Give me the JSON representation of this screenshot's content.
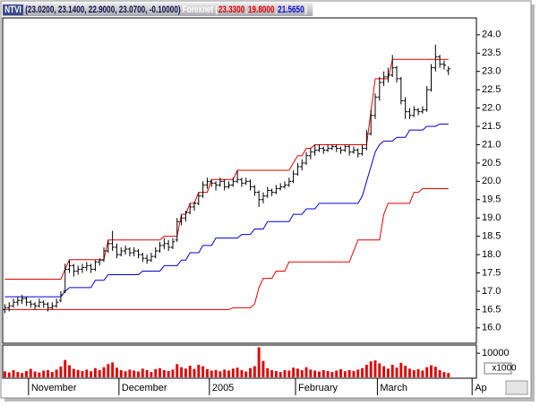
{
  "header": {
    "symbol": "NTVI",
    "quote": "(23.0200, 23.1400, 22.9000, 23.0700, -0.10000)",
    "indicator": "Forexnet",
    "indicator_parts": [
      {
        "text": "(",
        "color": "#ffffff"
      },
      {
        "text": "23.3300",
        "color": "#e00000"
      },
      {
        "text": ",",
        "color": "#ffffff"
      },
      {
        "text": "19.8000",
        "color": "#e00000"
      },
      {
        "text": ",",
        "color": "#ffffff"
      },
      {
        "text": "21.5650",
        "color": "#1010d0"
      },
      {
        "text": ")",
        "color": "#ffffff"
      }
    ]
  },
  "chart_data": {
    "type": "ohlc",
    "color": "#000000",
    "categories": [
      null,
      null,
      null,
      null,
      null,
      null,
      "November",
      null,
      null,
      null,
      null,
      null,
      null,
      null,
      null,
      null,
      null,
      null,
      null,
      null,
      null,
      null,
      null,
      null,
      null,
      null,
      null,
      "December",
      null,
      null,
      null,
      null,
      null,
      null,
      null,
      null,
      null,
      null,
      null,
      null,
      null,
      null,
      null,
      null,
      null,
      null,
      null,
      null,
      "2005",
      null,
      null,
      null,
      null,
      null,
      null,
      null,
      null,
      null,
      null,
      null,
      null,
      null,
      null,
      null,
      null,
      null,
      null,
      null,
      "February",
      null,
      null,
      null,
      null,
      null,
      null,
      null,
      null,
      null,
      null,
      null,
      null,
      null,
      null,
      null,
      null,
      null,
      null,
      "March",
      null,
      null,
      null,
      null,
      null,
      null,
      null,
      null,
      null,
      null,
      null,
      null,
      null,
      null,
      null,
      null,
      null,
      null,
      null,
      null,
      null,
      "Ap"
    ],
    "ylim": [
      15.58,
      24.46
    ],
    "yticks": [
      {
        "value": 16,
        "label": "16.0"
      },
      16.5,
      {
        "value": 17,
        "label": "17.0"
      },
      17.5,
      {
        "value": 18,
        "label": "18.0"
      },
      18.5,
      {
        "value": 19,
        "label": "19.0"
      },
      19.5,
      {
        "value": 20,
        "label": "20.0"
      },
      20.5,
      {
        "value": 21,
        "label": "21.0"
      },
      21.5,
      {
        "value": 22,
        "label": "22.0"
      },
      22.5,
      {
        "value": 23,
        "label": "23.0"
      },
      23.5,
      {
        "value": 24,
        "label": "24.0"
      }
    ],
    "open": [
      16.5,
      16.55,
      16.6,
      16.7,
      16.75,
      16.8,
      16.7,
      16.65,
      16.6,
      16.7,
      16.65,
      16.55,
      16.6,
      16.75,
      17.0,
      17.6,
      17.7,
      17.55,
      17.6,
      17.65,
      17.7,
      17.6,
      17.8,
      17.85,
      18.1,
      18.3,
      18.2,
      18.0,
      18.1,
      18.15,
      18.05,
      18.1,
      18.0,
      17.9,
      17.85,
      17.95,
      18.1,
      18.25,
      18.3,
      18.2,
      18.4,
      18.9,
      19.0,
      19.15,
      19.3,
      19.4,
      19.6,
      19.9,
      20.0,
      19.95,
      19.9,
      20.0,
      19.85,
      19.9,
      20.0,
      20.05,
      19.95,
      20.0,
      19.85,
      19.7,
      19.5,
      19.6,
      19.75,
      19.7,
      19.8,
      19.85,
      19.9,
      20.0,
      20.2,
      20.4,
      20.5,
      20.7,
      20.8,
      20.85,
      20.9,
      20.85,
      20.9,
      20.95,
      20.9,
      20.85,
      20.95,
      20.8,
      20.85,
      20.75,
      20.9,
      21.3,
      21.8,
      22.3,
      22.7,
      22.85,
      22.9,
      23.1,
      22.8,
      22.2,
      21.9,
      21.8,
      21.95,
      21.9,
      21.95,
      22.5,
      23.1,
      23.4,
      23.2,
      23.02,
      null,
      null,
      null,
      null,
      null,
      null
    ],
    "high": [
      16.65,
      16.7,
      16.8,
      16.85,
      16.9,
      16.85,
      16.75,
      16.7,
      16.8,
      16.75,
      16.7,
      16.7,
      16.8,
      17.0,
      17.75,
      17.85,
      17.75,
      17.7,
      17.75,
      17.8,
      17.75,
      17.85,
      17.9,
      18.2,
      18.4,
      18.65,
      18.3,
      18.2,
      18.25,
      18.2,
      18.2,
      18.15,
      18.05,
      18.0,
      18.05,
      18.2,
      18.35,
      18.45,
      18.4,
      18.45,
      19.0,
      19.1,
      19.2,
      19.4,
      19.45,
      19.7,
      20.0,
      20.1,
      20.05,
      20.0,
      20.1,
      20.05,
      20.0,
      20.1,
      20.3,
      20.1,
      20.1,
      20.05,
      19.9,
      19.75,
      19.7,
      19.85,
      19.8,
      19.9,
      19.95,
      20.0,
      20.1,
      20.3,
      20.5,
      20.6,
      20.8,
      20.9,
      21.0,
      21.0,
      20.95,
      21.0,
      21.0,
      21.0,
      20.95,
      21.0,
      21.0,
      20.95,
      20.9,
      21.0,
      21.4,
      21.95,
      22.4,
      22.85,
      23.0,
      23.1,
      23.45,
      23.15,
      22.85,
      22.3,
      22.0,
      22.05,
      22.0,
      22.05,
      22.6,
      23.2,
      23.73,
      23.45,
      23.3,
      23.14,
      null,
      null,
      null,
      null,
      null,
      null
    ],
    "low": [
      16.4,
      16.45,
      16.55,
      16.6,
      16.65,
      16.6,
      16.55,
      16.5,
      16.55,
      16.55,
      16.45,
      16.5,
      16.55,
      16.7,
      16.95,
      17.5,
      17.4,
      17.45,
      17.5,
      17.55,
      17.5,
      17.55,
      17.7,
      17.8,
      18.05,
      18.1,
      17.9,
      17.95,
      18.0,
      17.95,
      17.95,
      17.9,
      17.8,
      17.75,
      17.8,
      17.9,
      18.05,
      18.15,
      18.1,
      18.15,
      18.35,
      18.8,
      18.9,
      19.1,
      19.2,
      19.35,
      19.55,
      19.8,
      19.85,
      19.75,
      19.85,
      19.75,
      19.8,
      19.85,
      19.95,
      19.85,
      19.9,
      19.75,
      19.6,
      19.3,
      19.4,
      19.55,
      19.6,
      19.65,
      19.75,
      19.8,
      19.85,
      19.95,
      20.15,
      20.3,
      20.45,
      20.6,
      20.7,
      20.8,
      20.75,
      20.8,
      20.85,
      20.8,
      20.75,
      20.8,
      20.7,
      20.75,
      20.65,
      20.7,
      20.85,
      21.25,
      21.7,
      22.2,
      22.6,
      22.7,
      22.85,
      22.7,
      22.1,
      21.7,
      21.7,
      21.75,
      21.8,
      21.85,
      21.9,
      22.45,
      23.0,
      23.1,
      23.05,
      22.9,
      null,
      null,
      null,
      null,
      null,
      null
    ],
    "close": [
      16.55,
      16.6,
      16.7,
      16.75,
      16.8,
      16.7,
      16.65,
      16.6,
      16.7,
      16.65,
      16.55,
      16.6,
      16.7,
      16.9,
      17.6,
      17.7,
      17.55,
      17.6,
      17.65,
      17.7,
      17.6,
      17.8,
      17.85,
      18.1,
      18.3,
      18.2,
      18.0,
      18.1,
      18.15,
      18.05,
      18.1,
      18.0,
      17.9,
      17.85,
      17.95,
      18.1,
      18.25,
      18.3,
      18.2,
      18.35,
      18.9,
      19.0,
      19.15,
      19.3,
      19.4,
      19.6,
      19.9,
      20.0,
      19.95,
      19.9,
      20.0,
      19.85,
      19.9,
      20.0,
      20.05,
      19.95,
      20.0,
      19.85,
      19.7,
      19.5,
      19.6,
      19.75,
      19.7,
      19.8,
      19.85,
      19.9,
      20.0,
      20.2,
      20.4,
      20.5,
      20.7,
      20.8,
      20.85,
      20.9,
      20.85,
      20.9,
      20.95,
      20.9,
      20.85,
      20.95,
      20.8,
      20.85,
      20.75,
      20.9,
      21.3,
      21.8,
      22.3,
      22.7,
      22.85,
      22.9,
      23.1,
      22.8,
      22.2,
      21.9,
      21.8,
      21.95,
      21.9,
      21.95,
      22.5,
      23.1,
      23.4,
      23.2,
      23.17,
      23.07,
      null,
      null,
      null,
      null,
      null,
      null
    ],
    "lines": [
      {
        "color": "#e00000",
        "values": [
          17.33,
          17.33,
          17.33,
          17.33,
          17.33,
          17.33,
          17.33,
          17.33,
          17.33,
          17.33,
          17.33,
          17.33,
          17.33,
          17.33,
          17.6,
          17.86,
          17.86,
          17.86,
          17.86,
          17.86,
          17.86,
          17.86,
          17.86,
          17.86,
          18.4,
          18.4,
          18.4,
          18.4,
          18.4,
          18.4,
          18.4,
          18.4,
          18.4,
          18.4,
          18.4,
          18.4,
          18.4,
          18.5,
          18.5,
          18.5,
          18.5,
          19.1,
          19.1,
          19.4,
          19.4,
          19.7,
          19.7,
          19.7,
          20.05,
          20.05,
          20.05,
          20.05,
          20.05,
          20.05,
          20.3,
          20.3,
          20.3,
          20.3,
          20.3,
          20.3,
          20.3,
          20.3,
          20.3,
          20.3,
          20.3,
          20.3,
          20.3,
          20.5,
          20.7,
          20.7,
          20.9,
          20.9,
          21.0,
          21.0,
          21.0,
          21.0,
          21.0,
          21.0,
          21.0,
          21.0,
          21.0,
          21.0,
          21.0,
          21.0,
          21.0,
          21.9,
          22.8,
          22.8,
          22.8,
          22.8,
          23.33,
          23.33,
          23.33,
          23.33,
          23.33,
          23.33,
          23.33,
          23.33,
          23.33,
          23.33,
          23.33,
          23.33,
          23.33,
          23.33,
          null,
          null,
          null,
          null,
          null,
          null
        ]
      },
      {
        "color": "#0000d0",
        "values": [
          16.85,
          16.85,
          16.85,
          16.85,
          16.85,
          16.85,
          16.85,
          16.85,
          16.85,
          16.85,
          16.85,
          16.85,
          16.85,
          16.85,
          17.0,
          17.1,
          17.1,
          17.1,
          17.1,
          17.1,
          17.1,
          17.3,
          17.3,
          17.3,
          17.45,
          17.45,
          17.45,
          17.45,
          17.45,
          17.45,
          17.45,
          17.45,
          17.55,
          17.55,
          17.55,
          17.55,
          17.55,
          17.7,
          17.7,
          17.7,
          17.7,
          17.85,
          17.85,
          18.05,
          18.05,
          18.05,
          18.25,
          18.25,
          18.25,
          18.45,
          18.45,
          18.45,
          18.45,
          18.45,
          18.45,
          18.55,
          18.55,
          18.55,
          18.7,
          18.7,
          18.7,
          18.9,
          18.9,
          18.9,
          18.9,
          18.9,
          18.9,
          19.1,
          19.1,
          19.1,
          19.25,
          19.25,
          19.25,
          19.4,
          19.4,
          19.4,
          19.4,
          19.4,
          19.4,
          19.4,
          19.4,
          19.4,
          19.4,
          19.6,
          20.0,
          20.4,
          20.8,
          21.0,
          21.1,
          21.1,
          21.1,
          21.2,
          21.2,
          21.2,
          21.4,
          21.4,
          21.4,
          21.4,
          21.5,
          21.5,
          21.5,
          21.565,
          21.565,
          21.565,
          null,
          null,
          null,
          null,
          null,
          null
        ]
      },
      {
        "color": "#e00000",
        "values": [
          16.5,
          16.5,
          16.5,
          16.5,
          16.5,
          16.5,
          16.5,
          16.5,
          16.5,
          16.5,
          16.5,
          16.5,
          16.5,
          16.5,
          16.5,
          16.5,
          16.5,
          16.5,
          16.5,
          16.5,
          16.5,
          16.5,
          16.5,
          16.5,
          16.5,
          16.5,
          16.5,
          16.5,
          16.5,
          16.5,
          16.5,
          16.5,
          16.5,
          16.5,
          16.5,
          16.5,
          16.5,
          16.5,
          16.5,
          16.5,
          16.5,
          16.5,
          16.5,
          16.5,
          16.5,
          16.5,
          16.5,
          16.5,
          16.5,
          16.5,
          16.5,
          16.5,
          16.5,
          16.55,
          16.55,
          16.55,
          16.55,
          16.55,
          16.65,
          17.1,
          17.35,
          17.35,
          17.35,
          17.55,
          17.55,
          17.55,
          17.8,
          17.8,
          17.8,
          17.8,
          17.8,
          17.8,
          17.8,
          17.8,
          17.8,
          17.8,
          17.8,
          17.8,
          17.8,
          17.8,
          17.8,
          18.1,
          18.4,
          18.4,
          18.4,
          18.4,
          18.4,
          18.4,
          19.1,
          19.4,
          19.4,
          19.4,
          19.4,
          19.4,
          19.4,
          19.7,
          19.7,
          19.8,
          19.8,
          19.8,
          19.8,
          19.8,
          19.8,
          19.8,
          null,
          null,
          null,
          null,
          null,
          null
        ]
      }
    ],
    "volume": {
      "type": "bar",
      "color": "#e00000",
      "ylim": [
        0,
        13400
      ],
      "yticks": [
        {
          "value": 10000,
          "label": "10000"
        }
      ],
      "unit_label": "x1000",
      "values": [
        2500,
        2000,
        3000,
        2200,
        1800,
        2600,
        3500,
        2400,
        2000,
        2800,
        3000,
        2200,
        3200,
        4500,
        7200,
        5000,
        3500,
        3000,
        2600,
        3200,
        2500,
        3800,
        3000,
        4200,
        5500,
        6200,
        4000,
        3000,
        2500,
        3200,
        2800,
        2400,
        3600,
        3000,
        2200,
        3400,
        3800,
        3000,
        2600,
        3200,
        5500,
        4200,
        3600,
        4800,
        3500,
        5200,
        4600,
        3400,
        2800,
        3000,
        2500,
        3200,
        2800,
        3600,
        4000,
        3000,
        2400,
        3800,
        4600,
        12500,
        6800,
        3800,
        3000,
        2600,
        2200,
        3000,
        2800,
        4000,
        3600,
        3000,
        4200,
        3200,
        2800,
        2400,
        3000,
        2600,
        2200,
        2800,
        3400,
        2500,
        3000,
        2600,
        3200,
        3800,
        5200,
        6600,
        7000,
        5800,
        4600,
        3600,
        5200,
        4000,
        6000,
        4800,
        3600,
        3000,
        3400,
        2800,
        4200,
        5000,
        4400,
        3000,
        2200,
        1800,
        null,
        null,
        null,
        null,
        null,
        null
      ]
    }
  }
}
